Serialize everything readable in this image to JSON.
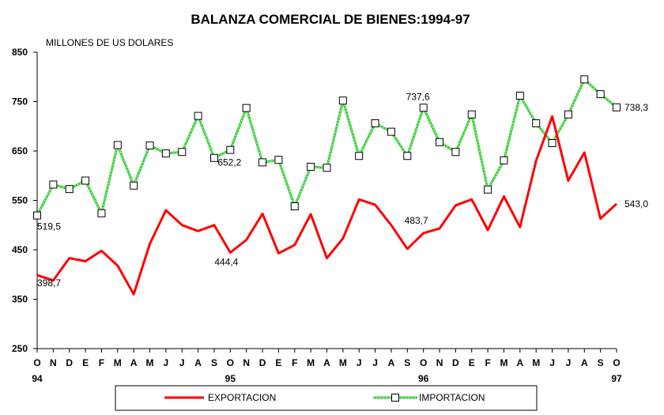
{
  "chart_data": {
    "type": "line",
    "title": "BALANZA COMERCIAL DE BIENES:1994-97",
    "unit_label": "MILLONES DE US DOLARES",
    "ylim": [
      250,
      850
    ],
    "yticks": [
      "250",
      "350",
      "450",
      "550",
      "650",
      "750",
      "850"
    ],
    "grid": false,
    "legend_position": "bottom",
    "categories": [
      "O",
      "N",
      "D",
      "E",
      "F",
      "M",
      "A",
      "M",
      "J",
      "J",
      "A",
      "S",
      "O",
      "N",
      "D",
      "E",
      "F",
      "M",
      "A",
      "M",
      "J",
      "J",
      "A",
      "S",
      "O",
      "N",
      "D",
      "E",
      "F",
      "M",
      "A",
      "M",
      "J",
      "J",
      "A",
      "S",
      "O"
    ],
    "year_labels": [
      {
        "index": 0,
        "label": "94"
      },
      {
        "index": 12,
        "label": "95"
      },
      {
        "index": 24,
        "label": "96"
      },
      {
        "index": 36,
        "label": "97"
      }
    ],
    "series": [
      {
        "name": "EXPORTACION",
        "color": "#ff0000",
        "values": [
          398.7,
          388,
          433,
          427,
          448,
          418,
          360,
          462,
          530,
          500,
          488,
          500,
          444.4,
          470,
          523,
          443,
          460,
          522,
          433,
          473,
          552,
          541,
          500,
          452,
          483.7,
          493,
          540,
          552,
          490,
          558,
          496,
          630,
          720,
          590,
          647,
          513,
          543.0
        ]
      },
      {
        "name": "IMPORTACION",
        "color": "#33cc33",
        "values": [
          519.5,
          582,
          573,
          590,
          524,
          662,
          580,
          661,
          645,
          648,
          721,
          636,
          652.2,
          737,
          627,
          632,
          538,
          618,
          616,
          752,
          640,
          706,
          689,
          640,
          737.6,
          668,
          648,
          724,
          572,
          631,
          762,
          706,
          666,
          724,
          795,
          765,
          738.3
        ]
      }
    ],
    "annotations": [
      {
        "series": 0,
        "index": 0,
        "text": "398,7"
      },
      {
        "series": 0,
        "index": 12,
        "text": "444,4"
      },
      {
        "series": 0,
        "index": 24,
        "text": "483,7"
      },
      {
        "series": 0,
        "index": 36,
        "text": "543,0"
      },
      {
        "series": 1,
        "index": 0,
        "text": "519,5"
      },
      {
        "series": 1,
        "index": 12,
        "text": "652,2"
      },
      {
        "series": 1,
        "index": 24,
        "text": "737,6"
      },
      {
        "series": 1,
        "index": 36,
        "text": "738,3"
      }
    ]
  }
}
